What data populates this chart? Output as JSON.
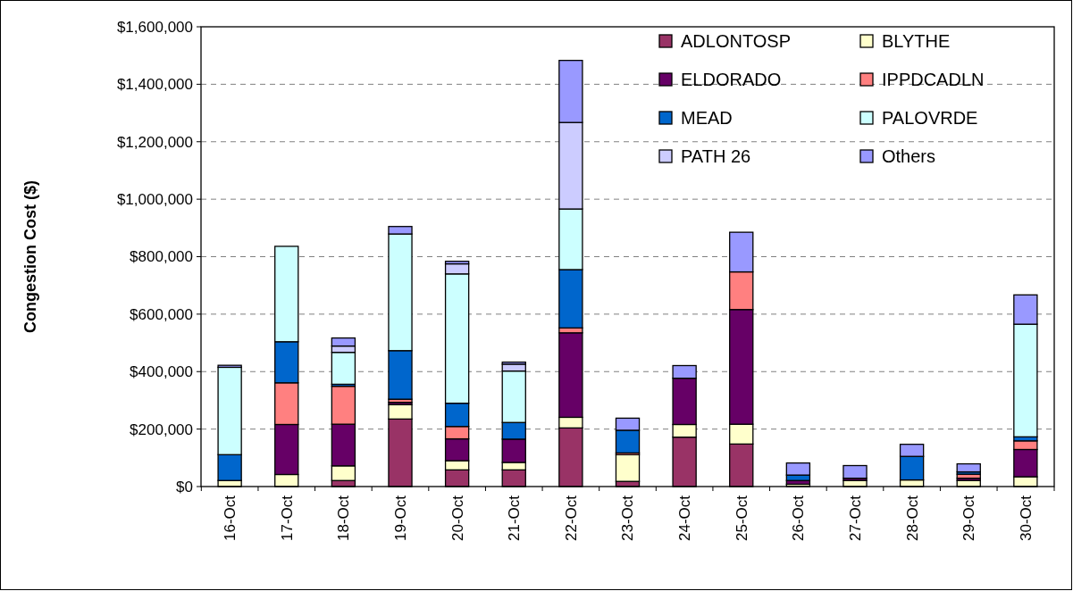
{
  "chart_data": {
    "type": "bar",
    "stacked": true,
    "ylabel": "Congestion Cost ($)",
    "categories": [
      "16-Oct",
      "17-Oct",
      "18-Oct",
      "19-Oct",
      "20-Oct",
      "21-Oct",
      "22-Oct",
      "23-Oct",
      "24-Oct",
      "25-Oct",
      "26-Oct",
      "27-Oct",
      "28-Oct",
      "29-Oct",
      "30-Oct"
    ],
    "series": [
      {
        "name": "ADLONTOSP",
        "color": "#993366",
        "values": [
          0,
          null,
          21000,
          235000,
          58000,
          58000,
          204000,
          18000,
          172000,
          148000,
          null,
          0,
          0,
          0,
          0
        ]
      },
      {
        "name": "BLYTHE",
        "color": "#ffffcc",
        "values": [
          21000,
          42000,
          51000,
          50000,
          32000,
          26000,
          37000,
          93000,
          44000,
          69000,
          8000,
          21000,
          23000,
          21000,
          34000
        ]
      },
      {
        "name": "ELDORADO",
        "color": "#660066",
        "values": [
          0,
          174000,
          145000,
          8000,
          76000,
          81000,
          294000,
          null,
          161000,
          399000,
          13000,
          8000,
          0,
          8000,
          95000
        ]
      },
      {
        "name": "IPPDCADLN",
        "color": "#ff8080",
        "values": [
          0,
          145000,
          132000,
          11000,
          43000,
          0,
          17000,
          6000,
          0,
          131000,
          0,
          0,
          0,
          14000,
          30000
        ]
      },
      {
        "name": "MEAD",
        "color": "#0066cc",
        "values": [
          90000,
          143000,
          7000,
          169000,
          81000,
          58000,
          203000,
          79000,
          0,
          0,
          19000,
          0,
          82000,
          8000,
          14000
        ]
      },
      {
        "name": "PALOVRDE",
        "color": "#ccffff",
        "values": [
          304000,
          332000,
          111000,
          406000,
          450000,
          179000,
          211000,
          0,
          0,
          0,
          0,
          0,
          0,
          0,
          392000
        ]
      },
      {
        "name": "PATH 26",
        "color": "#ccccff",
        "values": [
          0,
          0,
          22000,
          0,
          35000,
          24000,
          301000,
          0,
          0,
          0,
          0,
          0,
          0,
          0,
          0
        ]
      },
      {
        "name": "Others",
        "color": "#9999ff",
        "values": [
          7000,
          0,
          28000,
          26000,
          9000,
          7000,
          216000,
          42000,
          44000,
          138000,
          42000,
          44000,
          42000,
          28000,
          102000
        ]
      }
    ],
    "ylim": [
      0,
      1600000
    ],
    "yticks": [
      {
        "value": 0,
        "label": "$0"
      },
      {
        "value": 200000,
        "label": "$200,000"
      },
      {
        "value": 400000,
        "label": "$400,000"
      },
      {
        "value": 600000,
        "label": "$600,000"
      },
      {
        "value": 800000,
        "label": "$800,000"
      },
      {
        "value": 1000000,
        "label": "$1,000,000"
      },
      {
        "value": 1200000,
        "label": "$1,200,000"
      },
      {
        "value": 1400000,
        "label": "$1,400,000"
      },
      {
        "value": 1600000,
        "label": "$1,600,000"
      }
    ],
    "grid": "y",
    "legend": "top right"
  }
}
